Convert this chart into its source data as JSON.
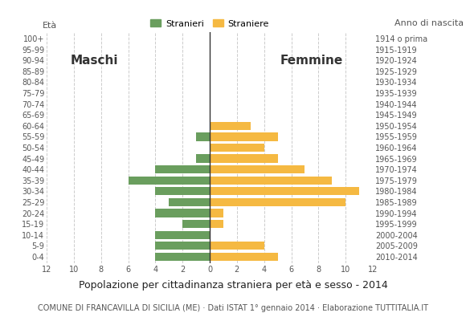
{
  "age_groups": [
    "0-4",
    "5-9",
    "10-14",
    "15-19",
    "20-24",
    "25-29",
    "30-34",
    "35-39",
    "40-44",
    "45-49",
    "50-54",
    "55-59",
    "60-64",
    "65-69",
    "70-74",
    "75-79",
    "80-84",
    "85-89",
    "90-94",
    "95-99",
    "100+"
  ],
  "birth_years": [
    "2010-2014",
    "2005-2009",
    "2000-2004",
    "1995-1999",
    "1990-1994",
    "1985-1989",
    "1980-1984",
    "1975-1979",
    "1970-1974",
    "1965-1969",
    "1960-1964",
    "1955-1959",
    "1950-1954",
    "1945-1949",
    "1940-1944",
    "1935-1939",
    "1930-1934",
    "1925-1929",
    "1920-1924",
    "1915-1919",
    "1914 o prima"
  ],
  "males": [
    4,
    4,
    4,
    2,
    4,
    3,
    4,
    6,
    4,
    1,
    0,
    1,
    0,
    0,
    0,
    0,
    0,
    0,
    0,
    0,
    0
  ],
  "females": [
    5,
    4,
    0,
    1,
    1,
    10,
    11,
    9,
    7,
    5,
    4,
    5,
    3,
    0,
    0,
    0,
    0,
    0,
    0,
    0,
    0
  ],
  "male_color": "#6a9e5e",
  "female_color": "#f5b942",
  "background_color": "#ffffff",
  "grid_color": "#cccccc",
  "title": "Popolazione per cittadinanza straniera per età e sesso - 2014",
  "subtitle": "COMUNE DI FRANCAVILLA DI SICILIA (ME) · Dati ISTAT 1° gennaio 2014 · Elaborazione TUTTITALIA.IT",
  "xlabel_left": "Maschi",
  "xlabel_right": "Femmine",
  "ylabel": "Età",
  "ylabel_right": "Anno di nascita",
  "legend_male": "Stranieri",
  "legend_female": "Straniere",
  "xlim": 12,
  "title_fontsize": 9,
  "subtitle_fontsize": 7,
  "axis_label_fontsize": 8,
  "tick_fontsize": 7,
  "bar_height": 0.75
}
